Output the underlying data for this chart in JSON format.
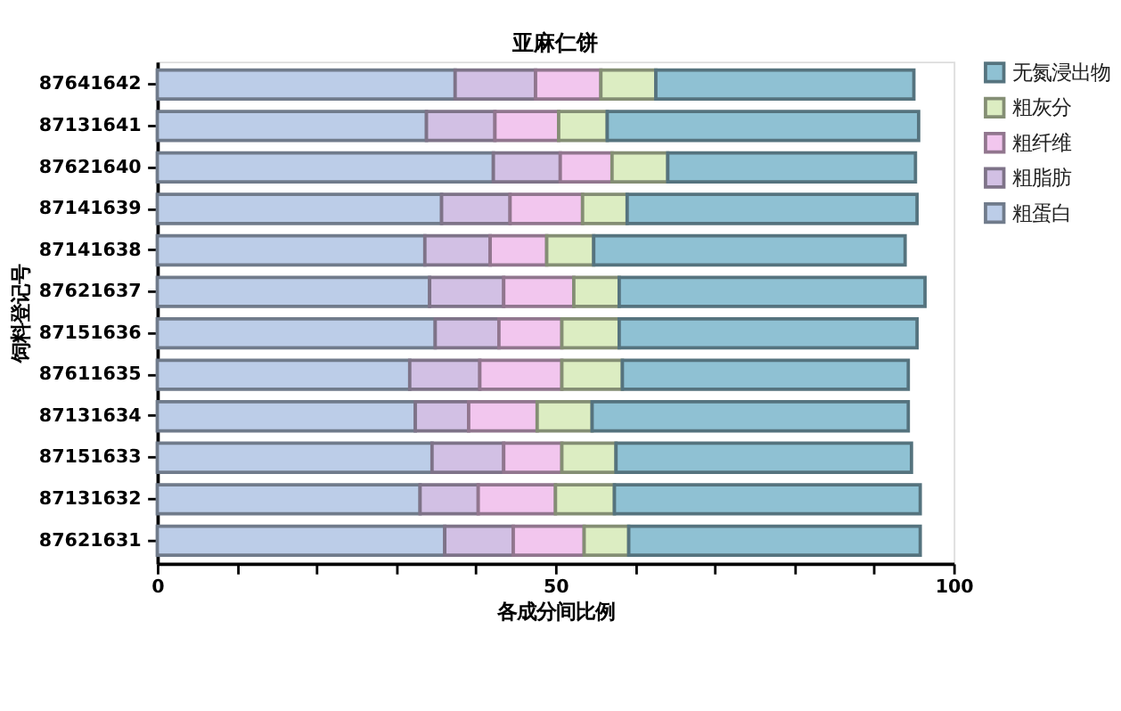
{
  "chart_data": {
    "type": "bar",
    "orientation": "horizontal",
    "stacked": true,
    "title": "亚麻仁饼",
    "xlabel": "各成分间比例",
    "ylabel": "饲料登记号",
    "categories": [
      "87641642",
      "87131641",
      "87621640",
      "87141639",
      "87141638",
      "87621637",
      "87151636",
      "87611635",
      "87131634",
      "87151633",
      "87131632",
      "87621631"
    ],
    "series": [
      {
        "name": "粗蛋白",
        "color": "#bccde8",
        "values": [
          37.4,
          33.8,
          42.2,
          35.7,
          33.6,
          34.2,
          34.9,
          31.7,
          32.4,
          34.5,
          33.0,
          36.1
        ]
      },
      {
        "name": "粗脂肪",
        "color": "#d2c0e4",
        "values": [
          10.1,
          8.6,
          8.4,
          8.6,
          8.2,
          9.3,
          8.0,
          8.8,
          6.7,
          9.0,
          7.3,
          8.6
        ]
      },
      {
        "name": "粗纤维",
        "color": "#f2c6ee",
        "values": [
          8.2,
          8.0,
          6.5,
          9.1,
          7.1,
          8.8,
          7.9,
          10.3,
          8.6,
          7.3,
          9.7,
          8.9
        ]
      },
      {
        "name": "粗灰分",
        "color": "#dcedc2",
        "values": [
          6.9,
          6.1,
          7.0,
          5.6,
          5.9,
          5.7,
          7.2,
          7.6,
          6.9,
          6.8,
          7.4,
          5.6
        ]
      },
      {
        "name": "无氮浸出物",
        "color": "#8fc1d3",
        "values": [
          32.4,
          39.1,
          31.1,
          36.4,
          39.1,
          38.4,
          37.4,
          35.9,
          39.7,
          37.1,
          38.4,
          36.6
        ]
      }
    ],
    "xlim": [
      0,
      100
    ],
    "xticks": [
      0,
      {
        "value": 10,
        "label": null
      },
      {
        "value": 20,
        "label": null
      },
      {
        "value": 30,
        "label": null
      },
      {
        "value": 40,
        "label": null
      },
      50,
      {
        "value": 60,
        "label": null
      },
      {
        "value": 70,
        "label": null
      },
      {
        "value": 80,
        "label": null
      },
      {
        "value": 90,
        "label": null
      },
      100
    ],
    "grid": false,
    "legend": "top right"
  }
}
